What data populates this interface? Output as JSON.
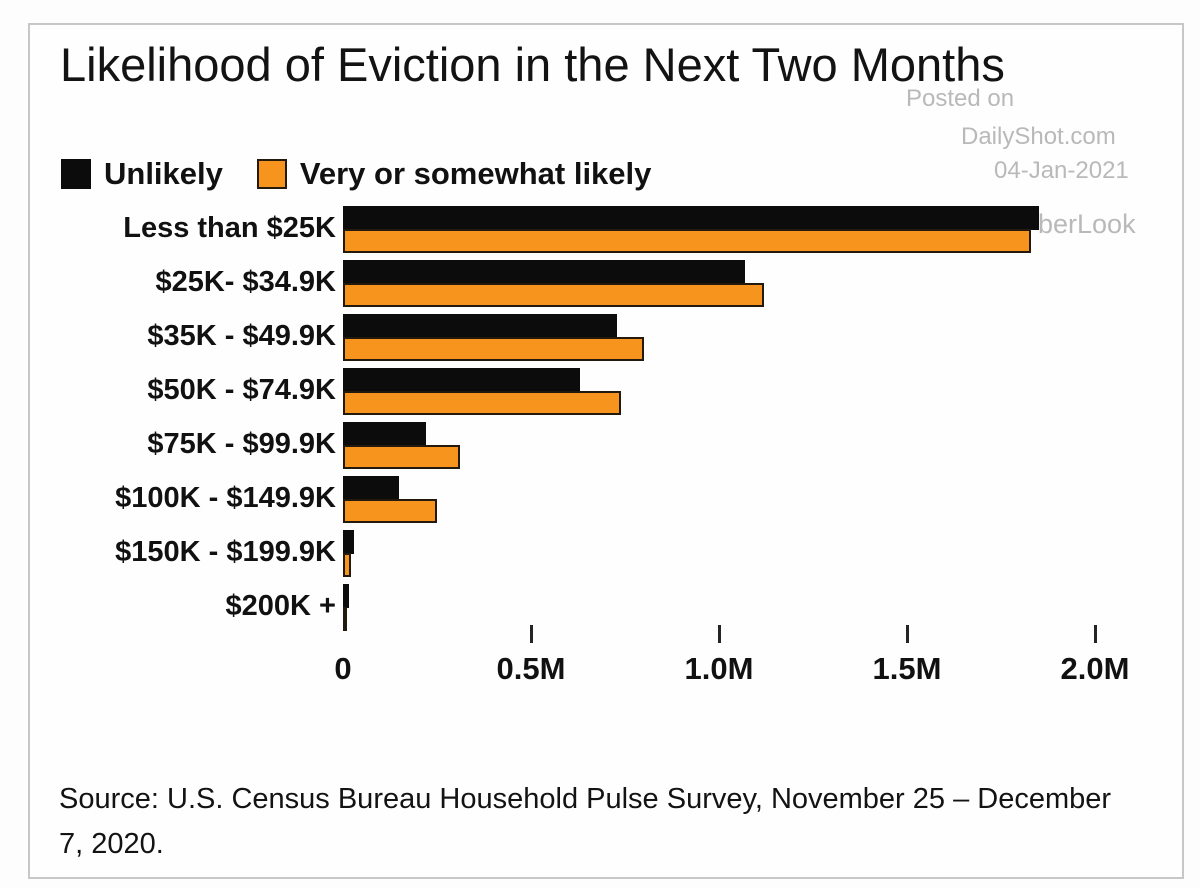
{
  "title": "Likelihood of Eviction in the Next Two Months",
  "watermark": {
    "line1": "Posted on",
    "line2": "DailyShot.com",
    "line3": "04-Jan-2021",
    "partial": "berLook",
    "color": "#b9b9b9"
  },
  "legend": {
    "items": [
      {
        "label": "Unlikely",
        "color": "#0c0c0c",
        "border": "#0c0c0c"
      },
      {
        "label": "Very or somewhat likely",
        "color": "#f7941d",
        "border": "#231a0d"
      }
    ]
  },
  "chart_data": {
    "type": "bar",
    "orientation": "horizontal",
    "title": "Likelihood of Eviction in the Next Two Months",
    "categories": [
      "Less than $25K",
      "$25K- $34.9K",
      "$35K - $49.9K",
      "$50K - $74.9K",
      "$75K - $99.9K",
      "$100K - $149.9K",
      "$150K - $199.9K",
      "$200K +"
    ],
    "series": [
      {
        "name": "Unlikely",
        "color": "#0c0c0c",
        "values": [
          1.85,
          1.07,
          0.73,
          0.63,
          0.22,
          0.15,
          0.03,
          0.015
        ]
      },
      {
        "name": "Very or somewhat likely",
        "color": "#f7941d",
        "values": [
          1.83,
          1.12,
          0.8,
          0.74,
          0.31,
          0.25,
          0.02,
          0.01
        ]
      }
    ],
    "x_unit": "M",
    "xlim": [
      0,
      2.05
    ],
    "x_ticks": [
      {
        "value": 0,
        "label": "0"
      },
      {
        "value": 0.5,
        "label": "0.5M"
      },
      {
        "value": 1.0,
        "label": "1.0M"
      },
      {
        "value": 1.5,
        "label": "1.5M"
      },
      {
        "value": 2.0,
        "label": "2.0M"
      }
    ],
    "legend_position": "top-left",
    "grid": false
  },
  "source": {
    "line1": "Source: U.S. Census Bureau Household Pulse Survey, November 25 – December",
    "line2": "7, 2020."
  }
}
